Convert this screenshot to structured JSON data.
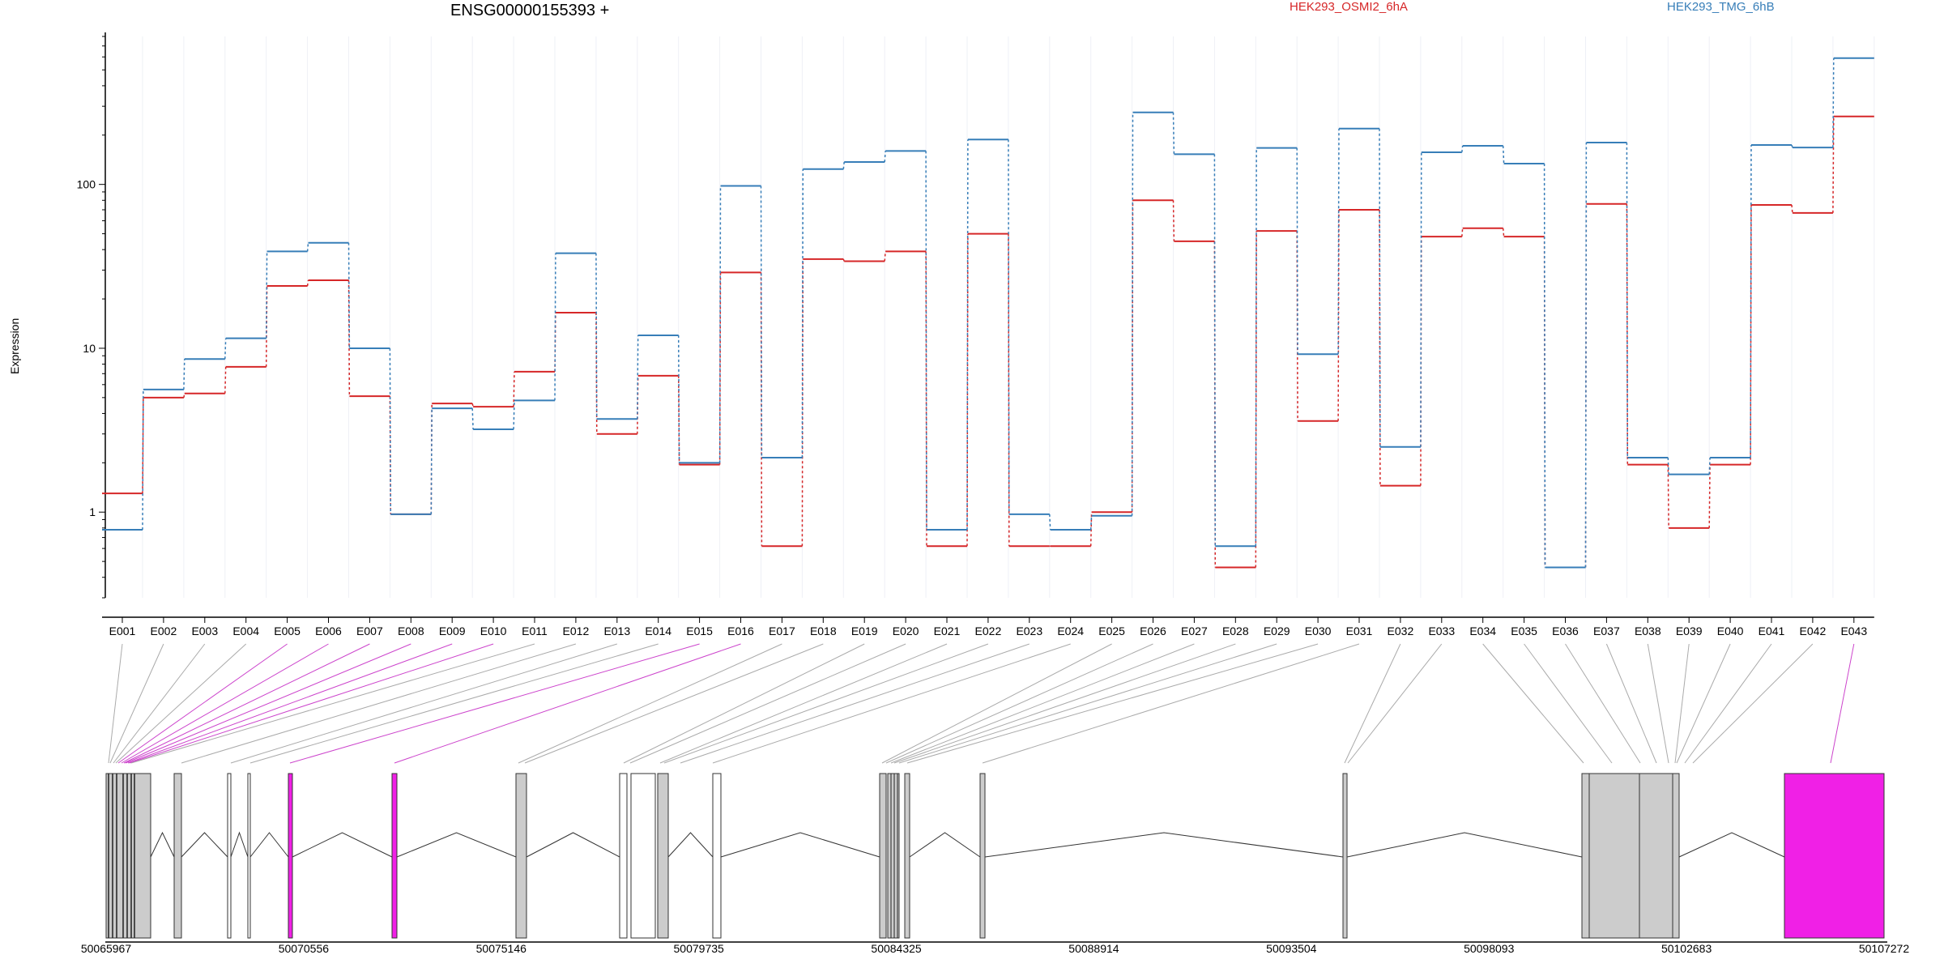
{
  "chart_data": {
    "type": "line",
    "title": "ENSG00000155393 +",
    "ylabel": "Expression",
    "yscale": "log",
    "ylim": [
      0.3,
      800
    ],
    "yticks": [
      1,
      10,
      100
    ],
    "categories": [
      "E001",
      "E002",
      "E003",
      "E004",
      "E005",
      "E006",
      "E007",
      "E008",
      "E009",
      "E010",
      "E011",
      "E012",
      "E013",
      "E014",
      "E015",
      "E016",
      "E017",
      "E018",
      "E019",
      "E020",
      "E021",
      "E022",
      "E023",
      "E024",
      "E025",
      "E026",
      "E027",
      "E028",
      "E029",
      "E030",
      "E031",
      "E032",
      "E033",
      "E034",
      "E035",
      "E036",
      "E037",
      "E038",
      "E039",
      "E040",
      "E041",
      "E042",
      "E043"
    ],
    "series": [
      {
        "name": "HEK293_OSMI2_6hA",
        "color": "#d62728",
        "values": [
          1.3,
          5.0,
          5.3,
          7.7,
          24,
          26,
          5.1,
          0.97,
          4.6,
          4.4,
          7.2,
          16.5,
          3.0,
          6.8,
          1.95,
          29,
          0.62,
          35,
          34,
          39,
          0.62,
          50,
          0.62,
          0.62,
          1.0,
          80,
          45,
          0.46,
          52,
          3.6,
          70,
          1.45,
          48,
          54,
          48,
          0.46,
          76,
          1.95,
          0.8,
          1.95,
          75,
          67,
          260
        ]
      },
      {
        "name": "HEK293_TMG_6hB",
        "color": "#377eb8",
        "values": [
          0.78,
          5.6,
          8.6,
          11.5,
          39,
          44,
          10,
          0.97,
          4.3,
          3.2,
          4.8,
          38,
          3.7,
          12,
          2.0,
          98,
          2.15,
          124,
          137,
          160,
          0.78,
          188,
          0.97,
          0.78,
          0.95,
          275,
          153,
          0.62,
          167,
          9.2,
          219,
          2.5,
          157,
          172,
          134,
          0.46,
          180,
          2.15,
          1.7,
          2.15,
          174,
          168,
          590
        ]
      }
    ]
  },
  "genome": {
    "coordinate_labels": [
      "50065967",
      "50070556",
      "50075146",
      "50079735",
      "50084325",
      "50088914",
      "50093504",
      "50098093",
      "50102683",
      "50107272"
    ]
  },
  "colors": {
    "highlight": "#f020e6",
    "exon_fill": "#cccccc",
    "connector": "#aaaaaa",
    "axis": "#000000"
  }
}
